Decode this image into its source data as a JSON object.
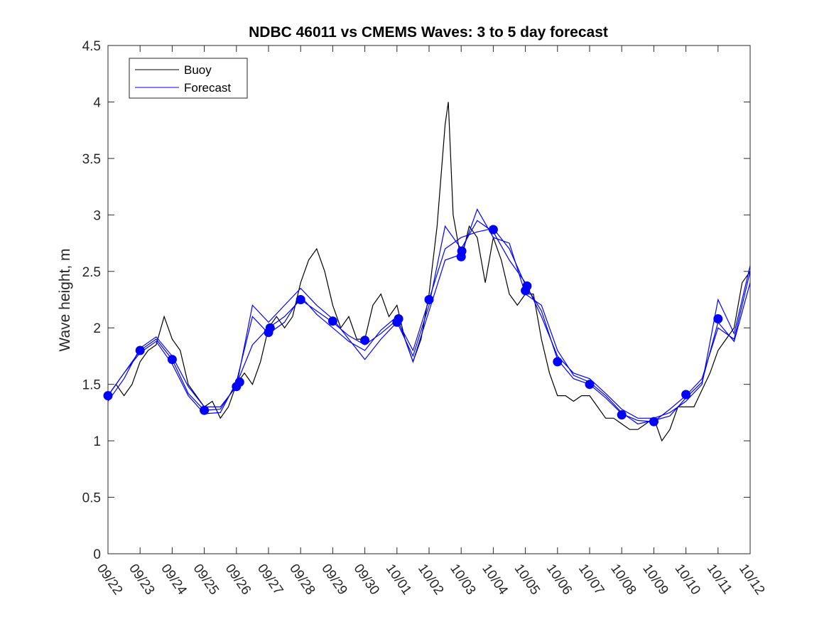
{
  "chart_data": {
    "type": "line",
    "title": "NDBC 46011 vs CMEMS Waves: 3 to 5 day forecast",
    "xlabel": "",
    "ylabel": "Wave height, m",
    "xlim": [
      0,
      20
    ],
    "ylim": [
      0,
      4.5
    ],
    "yticks": [
      0,
      0.5,
      1,
      1.5,
      2,
      2.5,
      3,
      3.5,
      4,
      4.5
    ],
    "ytick_labels": [
      "0",
      "0.5",
      "1",
      "1.5",
      "2",
      "2.5",
      "3",
      "3.5",
      "4",
      "4.5"
    ],
    "xticks": [
      0,
      1,
      2,
      3,
      4,
      5,
      6,
      7,
      8,
      9,
      10,
      11,
      12,
      13,
      14,
      15,
      16,
      17,
      18,
      19,
      20
    ],
    "xtick_labels": [
      "09/22",
      "09/23",
      "09/24",
      "09/25",
      "09/26",
      "09/27",
      "09/28",
      "09/29",
      "09/30",
      "10/01",
      "10/02",
      "10/03",
      "10/04",
      "10/05",
      "10/06",
      "10/07",
      "10/08",
      "10/09",
      "10/10",
      "10/11",
      "10/12"
    ],
    "grid": false,
    "legend": {
      "location": "top-left",
      "entries": [
        "Buoy",
        "Forecast"
      ]
    },
    "colors": {
      "buoy": "#000000",
      "forecast": "#0000ff",
      "markers": "#0000ff"
    },
    "series": [
      {
        "name": "Buoy",
        "x": [
          0,
          0.25,
          0.5,
          0.75,
          1,
          1.25,
          1.5,
          1.75,
          2,
          2.25,
          2.5,
          2.75,
          3,
          3.25,
          3.5,
          3.75,
          4,
          4.25,
          4.5,
          4.75,
          5,
          5.25,
          5.5,
          5.75,
          6,
          6.25,
          6.5,
          6.75,
          7,
          7.25,
          7.5,
          7.75,
          8,
          8.25,
          8.5,
          8.75,
          9,
          9.25,
          9.5,
          9.75,
          10,
          10.25,
          10.5,
          10.6,
          10.75,
          11,
          11.25,
          11.5,
          11.75,
          12,
          12.25,
          12.5,
          12.75,
          13,
          13.25,
          13.5,
          13.75,
          14,
          14.25,
          14.5,
          14.75,
          15,
          15.25,
          15.5,
          15.75,
          16,
          16.25,
          16.5,
          16.75,
          17,
          17.25,
          17.5,
          17.75,
          18,
          18.25,
          18.5,
          18.75,
          19,
          19.25,
          19.5,
          19.75,
          20
        ],
        "values": [
          1.4,
          1.5,
          1.4,
          1.5,
          1.7,
          1.8,
          1.85,
          2.1,
          1.9,
          1.8,
          1.5,
          1.4,
          1.3,
          1.35,
          1.2,
          1.3,
          1.5,
          1.6,
          1.5,
          1.7,
          2.0,
          2.1,
          2.0,
          2.1,
          2.4,
          2.6,
          2.7,
          2.5,
          2.2,
          2.0,
          2.1,
          1.9,
          1.9,
          2.2,
          2.3,
          2.1,
          2.2,
          1.9,
          1.7,
          1.9,
          2.3,
          2.9,
          3.8,
          4.0,
          3.0,
          2.6,
          2.9,
          2.8,
          2.4,
          2.8,
          2.6,
          2.3,
          2.2,
          2.3,
          2.3,
          1.9,
          1.6,
          1.4,
          1.4,
          1.35,
          1.4,
          1.4,
          1.3,
          1.2,
          1.2,
          1.15,
          1.1,
          1.1,
          1.15,
          1.2,
          1.0,
          1.1,
          1.3,
          1.3,
          1.3,
          1.45,
          1.6,
          1.8,
          1.9,
          2.0,
          2.4,
          2.5
        ]
      },
      {
        "name": "Forecast",
        "x": [
          0,
          0.5,
          1,
          1.5,
          2,
          2.5,
          3,
          3.5,
          4,
          4.5,
          5,
          5.5,
          6,
          6.5,
          7,
          7.5,
          8,
          8.5,
          9,
          9.5,
          10,
          10.5,
          11,
          11.5,
          12,
          12.5,
          13,
          13.5,
          14,
          14.5,
          15,
          15.5,
          16,
          16.5,
          17,
          17.5,
          18,
          18.5,
          19,
          19.5,
          20
        ],
        "values": [
          1.4,
          1.6,
          1.8,
          1.9,
          1.72,
          1.42,
          1.27,
          1.28,
          1.5,
          1.85,
          2.0,
          2.1,
          2.25,
          2.15,
          2.05,
          1.93,
          1.85,
          1.95,
          2.07,
          1.8,
          2.25,
          2.7,
          2.8,
          2.85,
          2.88,
          2.7,
          2.38,
          2.15,
          1.72,
          1.55,
          1.5,
          1.38,
          1.24,
          1.18,
          1.17,
          1.28,
          1.4,
          1.55,
          2.0,
          1.9,
          2.5
        ]
      },
      {
        "name": "Forecast",
        "x": [
          0,
          0.5,
          1,
          1.5,
          2,
          2.5,
          3,
          3.5,
          4,
          4.5,
          5,
          5.5,
          6,
          6.5,
          7,
          7.5,
          8,
          8.5,
          9,
          9.5,
          10,
          10.5,
          11,
          11.5,
          12,
          12.5,
          13,
          13.5,
          14,
          14.5,
          15,
          15.5,
          16,
          16.5,
          17,
          17.5,
          18,
          18.5,
          19,
          19.5,
          20
        ],
        "values": [
          1.35,
          1.55,
          1.82,
          1.92,
          1.75,
          1.48,
          1.3,
          1.3,
          1.48,
          2.2,
          2.05,
          2.2,
          2.35,
          2.2,
          2.08,
          1.9,
          1.72,
          1.9,
          2.05,
          1.75,
          2.2,
          2.9,
          2.7,
          2.95,
          2.85,
          2.6,
          2.4,
          2.1,
          1.75,
          1.6,
          1.55,
          1.42,
          1.28,
          1.2,
          1.2,
          1.25,
          1.35,
          1.5,
          2.25,
          1.95,
          2.55
        ]
      },
      {
        "name": "Forecast",
        "x": [
          0,
          0.5,
          1,
          1.5,
          2,
          2.5,
          3,
          3.5,
          4,
          4.5,
          5,
          5.5,
          6,
          6.5,
          7,
          7.5,
          8,
          8.5,
          9,
          9.5,
          10,
          10.5,
          11,
          11.5,
          12,
          12.5,
          13,
          13.5,
          14,
          14.5,
          15,
          15.5,
          16,
          16.5,
          17,
          17.5,
          18,
          18.5,
          19,
          19.5,
          20
        ],
        "values": [
          1.4,
          1.6,
          1.78,
          1.88,
          1.68,
          1.4,
          1.24,
          1.25,
          1.52,
          2.1,
          1.95,
          2.05,
          2.28,
          2.12,
          2.0,
          1.88,
          1.8,
          1.98,
          2.1,
          1.7,
          2.15,
          2.6,
          2.65,
          3.05,
          2.8,
          2.75,
          2.3,
          2.2,
          1.8,
          1.58,
          1.52,
          1.4,
          1.25,
          1.15,
          1.18,
          1.22,
          1.38,
          1.52,
          2.05,
          1.88,
          2.4
        ]
      }
    ],
    "markers": {
      "name": "Forecast",
      "x": [
        0,
        1,
        2,
        3,
        4,
        4.1,
        5,
        5.05,
        6,
        7,
        8,
        9,
        9.05,
        10,
        11,
        11.02,
        12,
        13,
        13.05,
        14,
        15,
        16,
        17,
        18,
        19
      ],
      "values": [
        1.4,
        1.8,
        1.72,
        1.27,
        1.48,
        1.52,
        1.96,
        2.0,
        2.25,
        2.06,
        1.89,
        2.05,
        2.08,
        2.25,
        2.63,
        2.68,
        2.87,
        2.33,
        2.37,
        1.7,
        1.5,
        1.23,
        1.17,
        1.41,
        2.08
      ]
    }
  }
}
